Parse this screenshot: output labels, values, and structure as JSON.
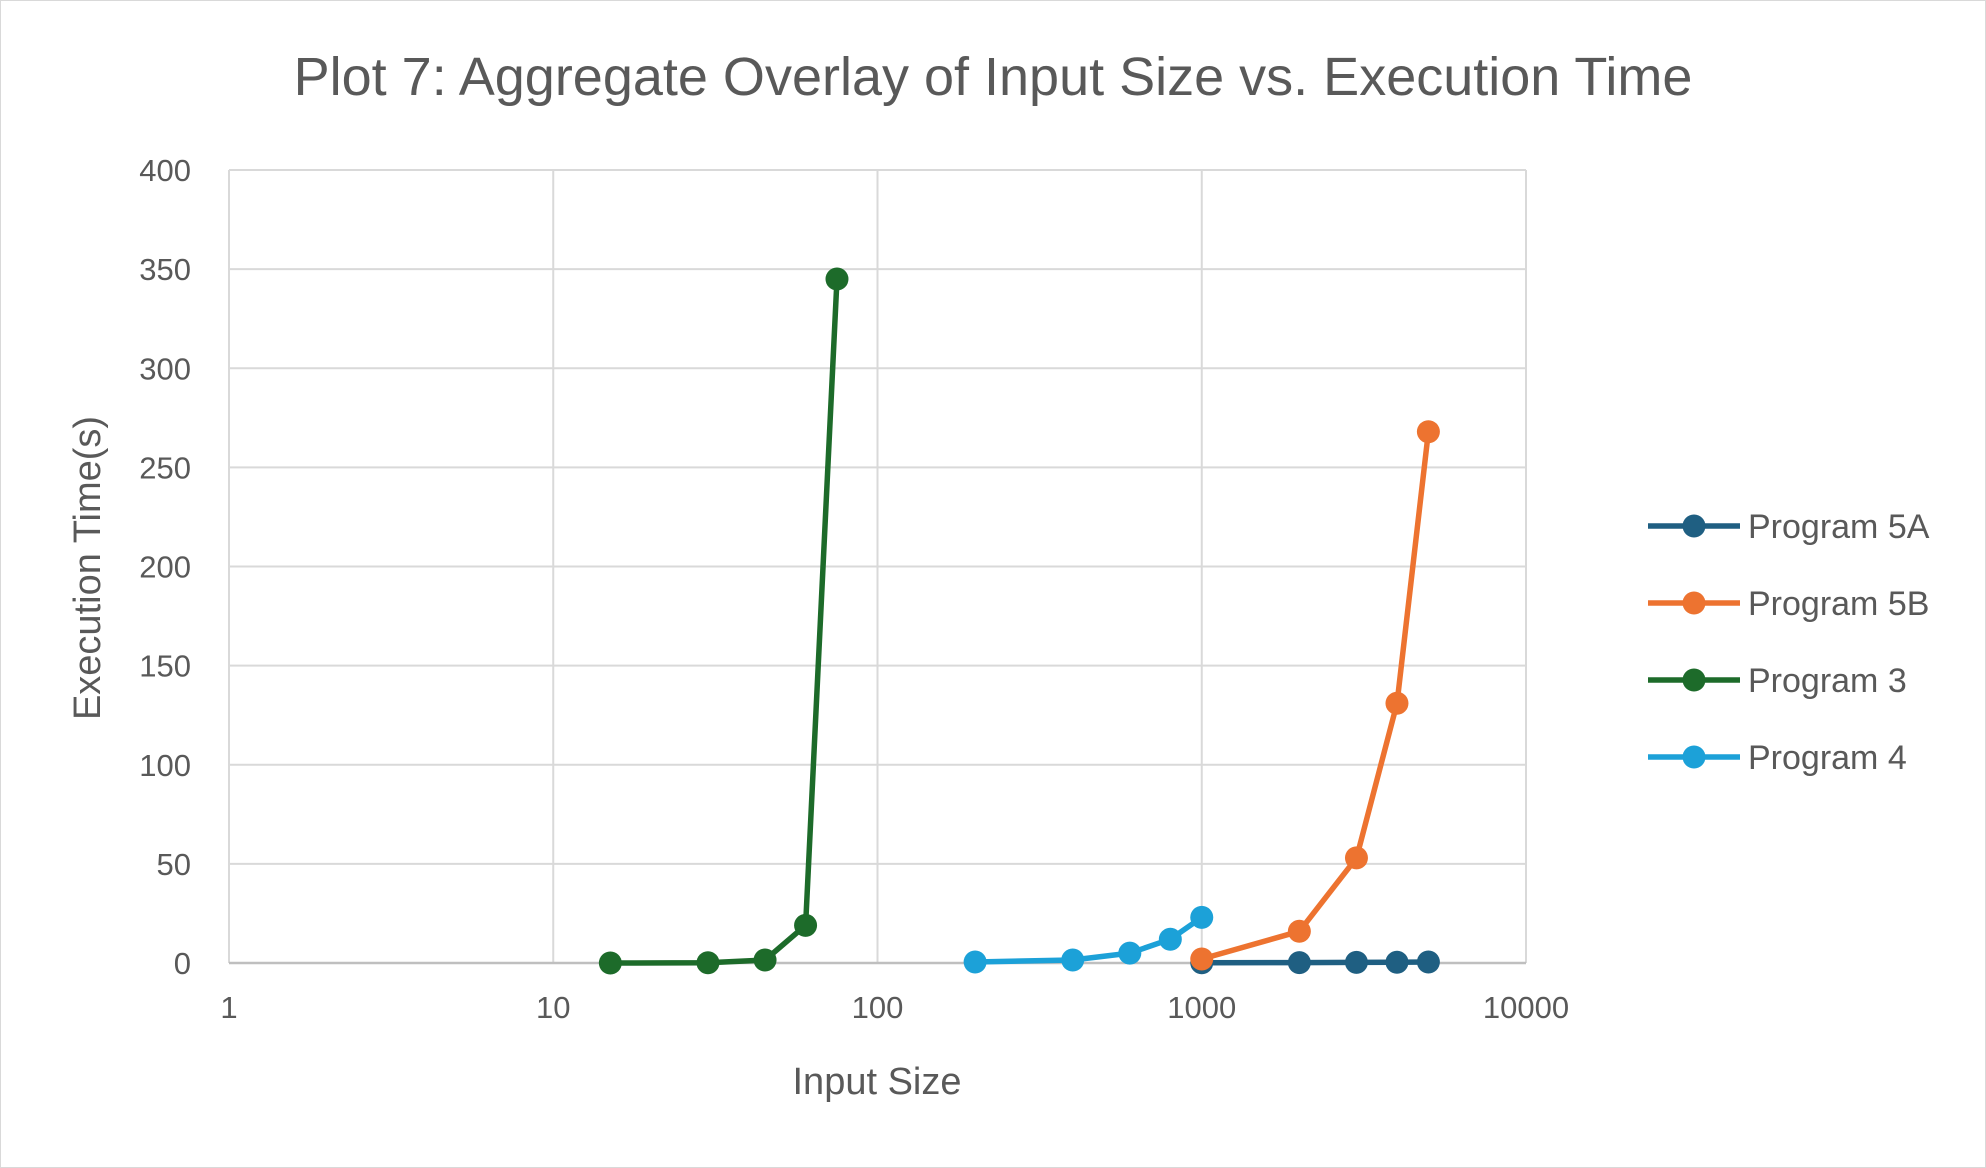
{
  "chart_data": {
    "type": "line",
    "title": "Plot 7: Aggregate Overlay of Input Size vs. Execution Time",
    "xlabel": "Input Size",
    "ylabel": "Execution Time(s)",
    "x_scale": "log",
    "xlim": [
      1,
      10000
    ],
    "ylim": [
      0,
      400
    ],
    "x_ticks": [
      "1",
      "10",
      "100",
      "1000",
      "10000"
    ],
    "y_ticks": [
      "0",
      "50",
      "100",
      "150",
      "200",
      "250",
      "300",
      "350",
      "400"
    ],
    "grid": true,
    "legend_position": "right",
    "series": [
      {
        "name": "Program 5A",
        "color": "#1f5f82",
        "x": [
          1000,
          2000,
          3000,
          4000,
          5000
        ],
        "y": [
          0.1,
          0.2,
          0.3,
          0.4,
          0.5
        ]
      },
      {
        "name": "Program 5B",
        "color": "#ed7330",
        "x": [
          1000,
          2000,
          3000,
          4000,
          5000
        ],
        "y": [
          2,
          16,
          53,
          131,
          268
        ]
      },
      {
        "name": "Program 3",
        "color": "#1d6b2a",
        "x": [
          15,
          30,
          45,
          60,
          75
        ],
        "y": [
          0,
          0.1,
          1.5,
          19,
          345
        ]
      },
      {
        "name": "Program 4",
        "color": "#1ca1d8",
        "x": [
          200,
          400,
          600,
          800,
          1000
        ],
        "y": [
          0.5,
          1.5,
          5,
          12,
          23
        ]
      }
    ]
  }
}
